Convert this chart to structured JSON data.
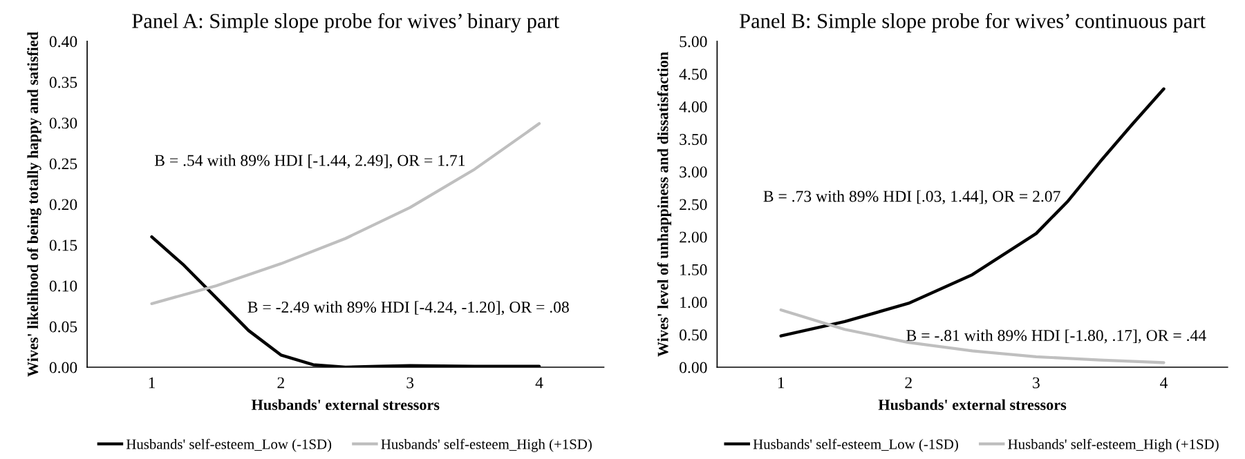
{
  "chart_data": [
    {
      "type": "line",
      "title": "Panel A: Simple slope probe for wives’ binary part",
      "xlabel": "Husbands' external stressors",
      "ylabel": "Wives' likelihood of being totally happy and satisfied",
      "xlim": [
        0.5,
        4.5
      ],
      "xticks": [
        1,
        2,
        3,
        4
      ],
      "ylim": [
        0,
        0.4
      ],
      "yticks": [
        {
          "value": 0,
          "label": "0.00"
        },
        {
          "value": 0.05,
          "label": "0.05"
        },
        {
          "value": 0.1,
          "label": "0.10"
        },
        {
          "value": 0.15,
          "label": "0.15"
        },
        {
          "value": 0.2,
          "label": "0.20"
        },
        {
          "value": 0.25,
          "label": "0.25"
        },
        {
          "value": 0.3,
          "label": "0.30"
        },
        {
          "value": 0.35,
          "label": "0.35"
        },
        {
          "value": 0.4,
          "label": "0.40"
        }
      ],
      "grid": false,
      "legend": "bottom",
      "marker": "none",
      "line_style": "solid",
      "annotations": [
        "B = .54 with 89% HDI [-1.44, 2.49], OR = 1.71",
        "B = -2.49 with 89% HDI [-4.24, -1.20], OR = .08"
      ],
      "series": [
        {
          "name": "Husbands' self-esteem_Low (-1SD)",
          "color": "#000000",
          "x": [
            1,
            1.25,
            1.5,
            1.75,
            2,
            2.25,
            2.5,
            2.75,
            3,
            3.5,
            4
          ],
          "values": [
            0.16,
            0.125,
            0.085,
            0.045,
            0.015,
            0.003,
            0.0,
            0.001,
            0.002,
            0.001,
            0.001
          ]
        },
        {
          "name": "Husbands' self-esteem_High (+1SD)",
          "color": "#bfbfbf",
          "x": [
            1,
            1.5,
            2,
            2.5,
            3,
            3.5,
            4
          ],
          "values": [
            0.078,
            0.1,
            0.127,
            0.158,
            0.196,
            0.243,
            0.299
          ]
        }
      ]
    },
    {
      "type": "line",
      "title": "Panel B: Simple slope probe for wives’ continuous part",
      "xlabel": "Husbands' external stressors",
      "ylabel": "Wives' level of unhappiness and dissatisfaction",
      "xlim": [
        0.5,
        4.5
      ],
      "xticks": [
        1,
        2,
        3,
        4
      ],
      "ylim": [
        0,
        5
      ],
      "yticks": [
        {
          "value": 0,
          "label": "0.00"
        },
        {
          "value": 0.5,
          "label": "0.50"
        },
        {
          "value": 1,
          "label": "1.00"
        },
        {
          "value": 1.5,
          "label": "1.50"
        },
        {
          "value": 2,
          "label": "2.00"
        },
        {
          "value": 2.5,
          "label": "2.50"
        },
        {
          "value": 3,
          "label": "3.00"
        },
        {
          "value": 3.5,
          "label": "3.50"
        },
        {
          "value": 4,
          "label": "4.00"
        },
        {
          "value": 4.5,
          "label": "4.50"
        },
        {
          "value": 5,
          "label": "5.00"
        }
      ],
      "grid": false,
      "legend": "bottom",
      "marker": "none",
      "line_style": "solid",
      "annotations": [
        "B = .73 with 89% HDI [.03, 1.44], OR = 2.07",
        "B = -.81 with 89% HDI [-1.80, .17], OR = .44"
      ],
      "series": [
        {
          "name": "Husbands' self-esteem_Low (-1SD)",
          "color": "#000000",
          "x": [
            1,
            1.5,
            2,
            2.5,
            3,
            3.25,
            3.5,
            3.75,
            4
          ],
          "values": [
            0.48,
            0.7,
            0.98,
            1.42,
            2.05,
            2.55,
            3.15,
            3.72,
            4.27
          ]
        },
        {
          "name": "Husbands' self-esteem_High (+1SD)",
          "color": "#bfbfbf",
          "x": [
            1,
            1.5,
            2,
            2.5,
            3,
            3.5,
            4
          ],
          "values": [
            0.88,
            0.58,
            0.38,
            0.25,
            0.16,
            0.11,
            0.07
          ]
        }
      ]
    }
  ]
}
